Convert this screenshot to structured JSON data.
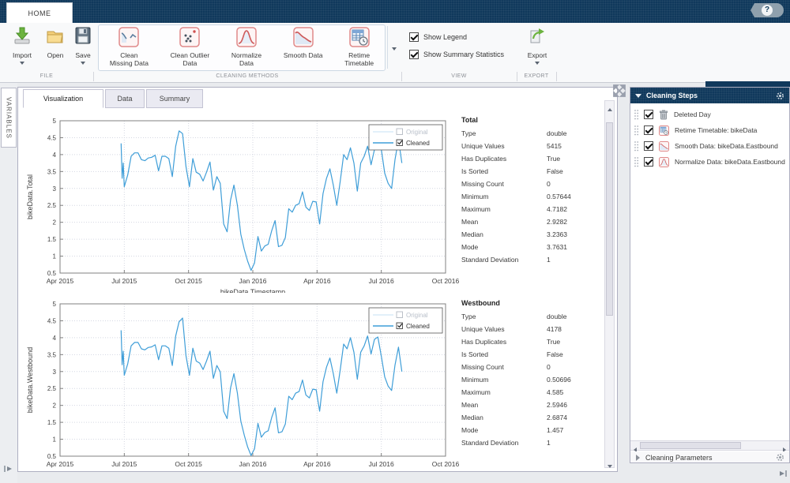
{
  "titlebar": {
    "home_tab": "HOME",
    "help_label": "?"
  },
  "colors": {
    "titlebar": "#10395c",
    "panel_header": "#10395c",
    "accent_line": "#3f9ed8",
    "method_icon_border": "#e08a8a"
  },
  "ribbon": {
    "file": {
      "label": "FILE",
      "buttons": [
        {
          "label": "Import",
          "dropdown": true
        },
        {
          "label": "Open",
          "dropdown": false
        },
        {
          "label": "Save",
          "dropdown": true
        }
      ]
    },
    "cleaning": {
      "label": "CLEANING METHODS",
      "buttons": [
        {
          "icon": "clean-missing-icon",
          "line1": "Clean",
          "line2": "Missing Data"
        },
        {
          "icon": "clean-outlier-icon",
          "line1": "Clean Outlier",
          "line2": "Data"
        },
        {
          "icon": "normalize-icon",
          "line1": "Normalize",
          "line2": "Data"
        },
        {
          "icon": "smooth-icon",
          "line1": "Smooth Data",
          "line2": ""
        },
        {
          "icon": "retime-icon",
          "line1": "Retime",
          "line2": "Timetable"
        }
      ]
    },
    "view": {
      "label": "VIEW",
      "checkboxes": [
        {
          "label": "Show Legend",
          "checked": true
        },
        {
          "label": "Show Summary Statistics",
          "checked": true
        }
      ]
    },
    "export": {
      "label": "EXPORT",
      "button_label": "Export"
    }
  },
  "sidebar": {
    "variables_label": "VARIABLES"
  },
  "document": {
    "tabs": [
      {
        "label": "Visualization",
        "active": true
      },
      {
        "label": "Data",
        "active": false
      },
      {
        "label": "Summary",
        "active": false
      }
    ],
    "stats": [
      {
        "title": "Total",
        "rows": [
          [
            "Type",
            "double"
          ],
          [
            "Unique Values",
            "5415"
          ],
          [
            "Has Duplicates",
            "True"
          ],
          [
            "Is Sorted",
            "False"
          ],
          [
            "Missing Count",
            "0"
          ],
          [
            "Minimum",
            "0.57644"
          ],
          [
            "Maximum",
            "4.7182"
          ],
          [
            "Mean",
            "2.9282"
          ],
          [
            "Median",
            "3.2363"
          ],
          [
            "Mode",
            "3.7631"
          ],
          [
            "Standard Deviation",
            "1"
          ]
        ]
      },
      {
        "title": "Westbound",
        "rows": [
          [
            "Type",
            "double"
          ],
          [
            "Unique Values",
            "4178"
          ],
          [
            "Has Duplicates",
            "True"
          ],
          [
            "Is Sorted",
            "False"
          ],
          [
            "Missing Count",
            "0"
          ],
          [
            "Minimum",
            "0.50696"
          ],
          [
            "Maximum",
            "4.585"
          ],
          [
            "Mean",
            "2.5946"
          ],
          [
            "Median",
            "2.6874"
          ],
          [
            "Mode",
            "1.457"
          ],
          [
            "Standard Deviation",
            "1"
          ]
        ]
      }
    ]
  },
  "cleaning_steps": {
    "title": "Cleaning Steps",
    "steps": [
      {
        "icon": "trash-icon",
        "label": "Deleted Day",
        "checked": true
      },
      {
        "icon": "retime-icon",
        "label": "Retime Timetable: bikeData",
        "checked": true
      },
      {
        "icon": "smooth-icon",
        "label": "Smooth Data: bikeData.Eastbound",
        "checked": true
      },
      {
        "icon": "normalize-icon",
        "label": "Normalize Data: bikeData.Eastbound",
        "checked": true
      }
    ],
    "parameters_title": "Cleaning Parameters"
  },
  "chart_data": [
    {
      "type": "line",
      "title": "",
      "xlabel": "bikeData.Timestamp",
      "ylabel": "bikeData.Total",
      "ylim": [
        0.5,
        5
      ],
      "ytick_step": 0.5,
      "grid": true,
      "legend_position": "top-right",
      "x_unit": "months since Apr 2015",
      "xtick_months": [
        0,
        3,
        6,
        9,
        12,
        15,
        18
      ],
      "xtick_labels": [
        "Apr 2015",
        "Jul 2015",
        "Oct 2015",
        "Jan 2016",
        "Apr 2016",
        "Jul 2016",
        "Oct 2016"
      ],
      "legend": [
        {
          "label": "Original",
          "checked": false,
          "line_color": "#d8ecf8",
          "text_color": "#b9c0ca"
        },
        {
          "label": "Cleaned",
          "checked": true,
          "line_color": "#3f9ed8",
          "text_color": "#333333"
        }
      ],
      "series": [
        {
          "name": "Cleaned",
          "color": "#3f9ed8",
          "x": [
            2.85,
            2.9,
            2.95,
            3,
            3.16,
            3.32,
            3.48,
            3.64,
            3.8,
            3.96,
            4.12,
            4.28,
            4.44,
            4.6,
            4.76,
            4.92,
            5.08,
            5.24,
            5.4,
            5.56,
            5.72,
            5.88,
            6.04,
            6.2,
            6.36,
            6.52,
            6.68,
            6.84,
            7,
            7.16,
            7.32,
            7.48,
            7.64,
            7.8,
            7.96,
            8.12,
            8.28,
            8.44,
            8.6,
            8.76,
            8.92,
            9.08,
            9.24,
            9.4,
            9.56,
            9.72,
            9.88,
            10.04,
            10.2,
            10.36,
            10.52,
            10.68,
            10.84,
            11,
            11.16,
            11.32,
            11.48,
            11.64,
            11.8,
            11.96,
            12.12,
            12.28,
            12.44,
            12.6,
            12.76,
            12.92,
            13.08,
            13.24,
            13.4,
            13.56,
            13.72,
            13.88,
            14.04,
            14.2,
            14.36,
            14.52,
            14.68,
            14.84,
            15,
            15.16,
            15.32,
            15.48,
            15.64,
            15.8,
            15.96
          ],
          "y": [
            4.33,
            3.3,
            3.75,
            3.05,
            3.4,
            3.95,
            4.05,
            4.05,
            3.85,
            3.82,
            3.9,
            3.92,
            3.98,
            3.52,
            3.95,
            3.95,
            3.88,
            3.35,
            4.25,
            4.7,
            4.62,
            3.65,
            3.05,
            3.88,
            3.48,
            3.42,
            3.22,
            3.48,
            3.78,
            2.95,
            3.35,
            3.15,
            1.95,
            1.72,
            2.65,
            3.1,
            2.5,
            1.65,
            1.2,
            0.85,
            0.58,
            0.8,
            1.58,
            1.15,
            1.3,
            1.35,
            1.75,
            2.05,
            1.28,
            1.32,
            1.55,
            2.4,
            2.3,
            2.5,
            2.55,
            2.9,
            2.45,
            2.35,
            2.62,
            2.6,
            1.95,
            2.85,
            3.3,
            3.58,
            3.1,
            2.5,
            3.2,
            4,
            3.85,
            4.2,
            3.75,
            2.92,
            3.75,
            3.95,
            4.25,
            3.7,
            4.15,
            4.22,
            4.15,
            3.45,
            3.15,
            3,
            3.85,
            4.45,
            3.75
          ]
        }
      ]
    },
    {
      "type": "line",
      "title": "",
      "xlabel": "bikeData.Timestamp",
      "ylabel": "bikeData.Westbound",
      "ylim": [
        0.5,
        5
      ],
      "ytick_step": 0.5,
      "grid": true,
      "legend_position": "top-right",
      "x_unit": "months since Apr 2015",
      "xtick_months": [
        0,
        3,
        6,
        9,
        12,
        15,
        18
      ],
      "xtick_labels": [
        "Apr 2015",
        "Jul 2015",
        "Oct 2015",
        "Jan 2016",
        "Apr 2016",
        "Jul 2016",
        "Oct 2016"
      ],
      "legend": [
        {
          "label": "Original",
          "checked": false,
          "line_color": "#d8ecf8",
          "text_color": "#b9c0ca"
        },
        {
          "label": "Cleaned",
          "checked": true,
          "line_color": "#3f9ed8",
          "text_color": "#333333"
        }
      ],
      "series": [
        {
          "name": "Cleaned",
          "color": "#3f9ed8",
          "x": [
            2.85,
            2.9,
            2.95,
            3,
            3.16,
            3.32,
            3.48,
            3.64,
            3.8,
            3.96,
            4.12,
            4.28,
            4.44,
            4.6,
            4.76,
            4.92,
            5.08,
            5.24,
            5.4,
            5.56,
            5.72,
            5.88,
            6.04,
            6.2,
            6.36,
            6.52,
            6.68,
            6.84,
            7,
            7.16,
            7.32,
            7.48,
            7.64,
            7.8,
            7.96,
            8.12,
            8.28,
            8.44,
            8.6,
            8.76,
            8.92,
            9.08,
            9.24,
            9.4,
            9.56,
            9.72,
            9.88,
            10.04,
            10.2,
            10.36,
            10.52,
            10.68,
            10.84,
            11,
            11.16,
            11.32,
            11.48,
            11.64,
            11.8,
            11.96,
            12.12,
            12.28,
            12.44,
            12.6,
            12.76,
            12.92,
            13.08,
            13.24,
            13.4,
            13.56,
            13.72,
            13.88,
            14.04,
            14.2,
            14.36,
            14.52,
            14.68,
            14.84,
            15,
            15.16,
            15.32,
            15.48,
            15.64,
            15.8,
            15.96
          ],
          "y": [
            4.22,
            3.2,
            3.6,
            2.89,
            3.23,
            3.76,
            3.86,
            3.86,
            3.67,
            3.64,
            3.71,
            3.73,
            3.79,
            3.35,
            3.76,
            3.76,
            3.69,
            3.18,
            4.05,
            4.47,
            4.58,
            3.47,
            2.89,
            3.69,
            3.31,
            3.25,
            3.06,
            3.31,
            3.6,
            2.8,
            3.18,
            2.99,
            1.83,
            1.61,
            2.51,
            2.94,
            2.36,
            1.54,
            1.12,
            0.77,
            0.52,
            0.72,
            1.47,
            1.06,
            1.2,
            1.25,
            1.64,
            1.93,
            1.19,
            1.22,
            1.45,
            2.27,
            2.17,
            2.36,
            2.41,
            2.75,
            2.31,
            2.22,
            2.48,
            2.46,
            1.83,
            2.7,
            3.13,
            3.4,
            2.94,
            2.36,
            3.04,
            3.81,
            3.67,
            4,
            3.57,
            2.77,
            3.57,
            3.76,
            4.05,
            3.52,
            3.95,
            4.02,
            3.45,
            2.84,
            2.57,
            2.44,
            3.19,
            3.72,
            3
          ]
        }
      ]
    }
  ]
}
